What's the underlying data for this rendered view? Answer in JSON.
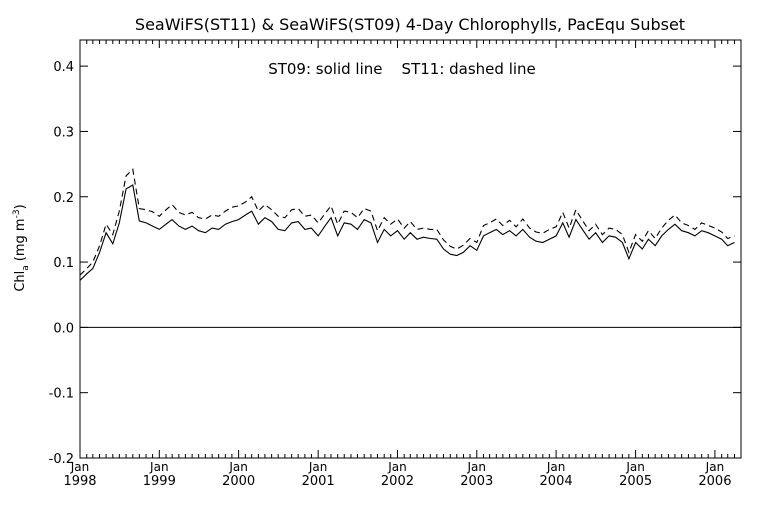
{
  "chart_data": {
    "type": "line",
    "title": "SeaWiFS(ST11) & SeaWiFS(ST09) 4-Day Chlorophylls, PacEqu Subset",
    "annotation": "ST09: solid line    ST11: dashed line",
    "ylabel_main": "Chl",
    "ylabel_sub": "a",
    "ylabel_unit": "(mg m",
    "ylabel_exp": "-3",
    "ylabel_close": ")",
    "xlim": [
      "1998-01-01",
      "2006-05-01"
    ],
    "ylim": [
      -0.2,
      0.44
    ],
    "yticks": [
      -0.2,
      -0.1,
      0.0,
      0.1,
      0.2,
      0.3,
      0.4
    ],
    "ytick_labels": [
      "-0.2",
      "-0.1",
      "0.0",
      "0.1",
      "0.2",
      "0.3",
      "0.4"
    ],
    "xticks": [
      {
        "month": "Jan",
        "year": "1998",
        "date": "1998-01-01"
      },
      {
        "month": "Jan",
        "year": "1999",
        "date": "1999-01-01"
      },
      {
        "month": "Jan",
        "year": "2000",
        "date": "2000-01-01"
      },
      {
        "month": "Jan",
        "year": "2001",
        "date": "2001-01-01"
      },
      {
        "month": "Jan",
        "year": "2002",
        "date": "2002-01-01"
      },
      {
        "month": "Jan",
        "year": "2003",
        "date": "2003-01-01"
      },
      {
        "month": "Jan",
        "year": "2004",
        "date": "2004-01-01"
      },
      {
        "month": "Jan",
        "year": "2005",
        "date": "2005-01-01"
      },
      {
        "month": "Jan",
        "year": "2006",
        "date": "2006-01-01"
      }
    ],
    "reference_line_y": 0.0,
    "grid": false,
    "series": [
      {
        "name": "ST09",
        "style": "solid",
        "color": "#000000",
        "points": [
          [
            "1998-01-01",
            0.072
          ],
          [
            "1998-02-01",
            0.082
          ],
          [
            "1998-03-01",
            0.09
          ],
          [
            "1998-04-01",
            0.115
          ],
          [
            "1998-05-01",
            0.145
          ],
          [
            "1998-06-01",
            0.128
          ],
          [
            "1998-07-01",
            0.16
          ],
          [
            "1998-08-01",
            0.212
          ],
          [
            "1998-09-01",
            0.218
          ],
          [
            "1998-10-01",
            0.163
          ],
          [
            "1998-11-01",
            0.16
          ],
          [
            "1998-12-01",
            0.155
          ],
          [
            "1999-01-01",
            0.15
          ],
          [
            "1999-02-01",
            0.158
          ],
          [
            "1999-03-01",
            0.165
          ],
          [
            "1999-04-01",
            0.155
          ],
          [
            "1999-05-01",
            0.15
          ],
          [
            "1999-06-01",
            0.155
          ],
          [
            "1999-07-01",
            0.148
          ],
          [
            "1999-08-01",
            0.145
          ],
          [
            "1999-09-01",
            0.152
          ],
          [
            "1999-10-01",
            0.15
          ],
          [
            "1999-11-01",
            0.158
          ],
          [
            "1999-12-01",
            0.162
          ],
          [
            "2000-01-01",
            0.165
          ],
          [
            "2000-02-01",
            0.172
          ],
          [
            "2000-03-01",
            0.178
          ],
          [
            "2000-04-01",
            0.158
          ],
          [
            "2000-05-01",
            0.168
          ],
          [
            "2000-06-01",
            0.162
          ],
          [
            "2000-07-01",
            0.15
          ],
          [
            "2000-08-01",
            0.148
          ],
          [
            "2000-09-01",
            0.16
          ],
          [
            "2000-10-01",
            0.162
          ],
          [
            "2000-11-01",
            0.15
          ],
          [
            "2000-12-01",
            0.152
          ],
          [
            "2001-01-01",
            0.14
          ],
          [
            "2001-02-01",
            0.155
          ],
          [
            "2001-03-01",
            0.168
          ],
          [
            "2001-04-01",
            0.14
          ],
          [
            "2001-05-01",
            0.16
          ],
          [
            "2001-06-01",
            0.158
          ],
          [
            "2001-07-01",
            0.15
          ],
          [
            "2001-08-01",
            0.165
          ],
          [
            "2001-09-01",
            0.16
          ],
          [
            "2001-10-01",
            0.13
          ],
          [
            "2001-11-01",
            0.15
          ],
          [
            "2001-12-01",
            0.14
          ],
          [
            "2002-01-01",
            0.148
          ],
          [
            "2002-02-01",
            0.135
          ],
          [
            "2002-03-01",
            0.145
          ],
          [
            "2002-04-01",
            0.135
          ],
          [
            "2002-05-01",
            0.138
          ],
          [
            "2002-06-01",
            0.136
          ],
          [
            "2002-07-01",
            0.135
          ],
          [
            "2002-08-01",
            0.12
          ],
          [
            "2002-09-01",
            0.112
          ],
          [
            "2002-10-01",
            0.11
          ],
          [
            "2002-11-01",
            0.115
          ],
          [
            "2002-12-01",
            0.125
          ],
          [
            "2003-01-01",
            0.118
          ],
          [
            "2003-02-01",
            0.14
          ],
          [
            "2003-03-01",
            0.145
          ],
          [
            "2003-04-01",
            0.15
          ],
          [
            "2003-05-01",
            0.142
          ],
          [
            "2003-06-01",
            0.148
          ],
          [
            "2003-07-01",
            0.14
          ],
          [
            "2003-08-01",
            0.15
          ],
          [
            "2003-09-01",
            0.138
          ],
          [
            "2003-10-01",
            0.132
          ],
          [
            "2003-11-01",
            0.13
          ],
          [
            "2003-12-01",
            0.135
          ],
          [
            "2004-01-01",
            0.14
          ],
          [
            "2004-02-01",
            0.16
          ],
          [
            "2004-03-01",
            0.138
          ],
          [
            "2004-04-01",
            0.165
          ],
          [
            "2004-05-01",
            0.15
          ],
          [
            "2004-06-01",
            0.135
          ],
          [
            "2004-07-01",
            0.145
          ],
          [
            "2004-08-01",
            0.13
          ],
          [
            "2004-09-01",
            0.14
          ],
          [
            "2004-10-01",
            0.138
          ],
          [
            "2004-11-01",
            0.13
          ],
          [
            "2004-12-01",
            0.105
          ],
          [
            "2005-01-01",
            0.13
          ],
          [
            "2005-02-01",
            0.12
          ],
          [
            "2005-03-01",
            0.135
          ],
          [
            "2005-04-01",
            0.125
          ],
          [
            "2005-05-01",
            0.14
          ],
          [
            "2005-06-01",
            0.15
          ],
          [
            "2005-07-01",
            0.158
          ],
          [
            "2005-08-01",
            0.148
          ],
          [
            "2005-09-01",
            0.145
          ],
          [
            "2005-10-01",
            0.14
          ],
          [
            "2005-11-01",
            0.148
          ],
          [
            "2005-12-01",
            0.145
          ],
          [
            "2006-01-01",
            0.14
          ],
          [
            "2006-02-01",
            0.135
          ],
          [
            "2006-03-01",
            0.125
          ],
          [
            "2006-04-01",
            0.13
          ]
        ]
      },
      {
        "name": "ST11",
        "style": "dashed",
        "color": "#000000",
        "points": [
          [
            "1998-01-01",
            0.08
          ],
          [
            "1998-02-01",
            0.09
          ],
          [
            "1998-03-01",
            0.1
          ],
          [
            "1998-04-01",
            0.125
          ],
          [
            "1998-05-01",
            0.158
          ],
          [
            "1998-06-01",
            0.142
          ],
          [
            "1998-07-01",
            0.178
          ],
          [
            "1998-08-01",
            0.232
          ],
          [
            "1998-09-01",
            0.242
          ],
          [
            "1998-10-01",
            0.182
          ],
          [
            "1998-11-01",
            0.18
          ],
          [
            "1998-12-01",
            0.177
          ],
          [
            "1999-01-01",
            0.17
          ],
          [
            "1999-02-01",
            0.18
          ],
          [
            "1999-03-01",
            0.188
          ],
          [
            "1999-04-01",
            0.176
          ],
          [
            "1999-05-01",
            0.172
          ],
          [
            "1999-06-01",
            0.176
          ],
          [
            "1999-07-01",
            0.168
          ],
          [
            "1999-08-01",
            0.166
          ],
          [
            "1999-09-01",
            0.172
          ],
          [
            "1999-10-01",
            0.17
          ],
          [
            "1999-11-01",
            0.178
          ],
          [
            "1999-12-01",
            0.184
          ],
          [
            "2000-01-01",
            0.186
          ],
          [
            "2000-02-01",
            0.192
          ],
          [
            "2000-03-01",
            0.2
          ],
          [
            "2000-04-01",
            0.178
          ],
          [
            "2000-05-01",
            0.188
          ],
          [
            "2000-06-01",
            0.18
          ],
          [
            "2000-07-01",
            0.17
          ],
          [
            "2000-08-01",
            0.168
          ],
          [
            "2000-09-01",
            0.18
          ],
          [
            "2000-10-01",
            0.182
          ],
          [
            "2000-11-01",
            0.17
          ],
          [
            "2000-12-01",
            0.172
          ],
          [
            "2001-01-01",
            0.16
          ],
          [
            "2001-02-01",
            0.174
          ],
          [
            "2001-03-01",
            0.186
          ],
          [
            "2001-04-01",
            0.158
          ],
          [
            "2001-05-01",
            0.178
          ],
          [
            "2001-06-01",
            0.176
          ],
          [
            "2001-07-01",
            0.168
          ],
          [
            "2001-08-01",
            0.182
          ],
          [
            "2001-09-01",
            0.178
          ],
          [
            "2001-10-01",
            0.148
          ],
          [
            "2001-11-01",
            0.168
          ],
          [
            "2001-12-01",
            0.158
          ],
          [
            "2002-01-01",
            0.166
          ],
          [
            "2002-02-01",
            0.152
          ],
          [
            "2002-03-01",
            0.162
          ],
          [
            "2002-04-01",
            0.15
          ],
          [
            "2002-05-01",
            0.152
          ],
          [
            "2002-06-01",
            0.15
          ],
          [
            "2002-07-01",
            0.15
          ],
          [
            "2002-08-01",
            0.134
          ],
          [
            "2002-09-01",
            0.124
          ],
          [
            "2002-10-01",
            0.12
          ],
          [
            "2002-11-01",
            0.126
          ],
          [
            "2002-12-01",
            0.136
          ],
          [
            "2003-01-01",
            0.13
          ],
          [
            "2003-02-01",
            0.156
          ],
          [
            "2003-03-01",
            0.16
          ],
          [
            "2003-04-01",
            0.166
          ],
          [
            "2003-05-01",
            0.156
          ],
          [
            "2003-06-01",
            0.164
          ],
          [
            "2003-07-01",
            0.154
          ],
          [
            "2003-08-01",
            0.166
          ],
          [
            "2003-09-01",
            0.152
          ],
          [
            "2003-10-01",
            0.146
          ],
          [
            "2003-11-01",
            0.144
          ],
          [
            "2003-12-01",
            0.15
          ],
          [
            "2004-01-01",
            0.154
          ],
          [
            "2004-02-01",
            0.176
          ],
          [
            "2004-03-01",
            0.152
          ],
          [
            "2004-04-01",
            0.18
          ],
          [
            "2004-05-01",
            0.164
          ],
          [
            "2004-06-01",
            0.148
          ],
          [
            "2004-07-01",
            0.158
          ],
          [
            "2004-08-01",
            0.142
          ],
          [
            "2004-09-01",
            0.152
          ],
          [
            "2004-10-01",
            0.15
          ],
          [
            "2004-11-01",
            0.142
          ],
          [
            "2004-12-01",
            0.115
          ],
          [
            "2005-01-01",
            0.142
          ],
          [
            "2005-02-01",
            0.132
          ],
          [
            "2005-03-01",
            0.148
          ],
          [
            "2005-04-01",
            0.136
          ],
          [
            "2005-05-01",
            0.152
          ],
          [
            "2005-06-01",
            0.164
          ],
          [
            "2005-07-01",
            0.172
          ],
          [
            "2005-08-01",
            0.16
          ],
          [
            "2005-09-01",
            0.156
          ],
          [
            "2005-10-01",
            0.15
          ],
          [
            "2005-11-01",
            0.16
          ],
          [
            "2005-12-01",
            0.156
          ],
          [
            "2006-01-01",
            0.152
          ],
          [
            "2006-02-01",
            0.146
          ],
          [
            "2006-03-01",
            0.136
          ],
          [
            "2006-04-01",
            0.14
          ]
        ]
      }
    ]
  }
}
